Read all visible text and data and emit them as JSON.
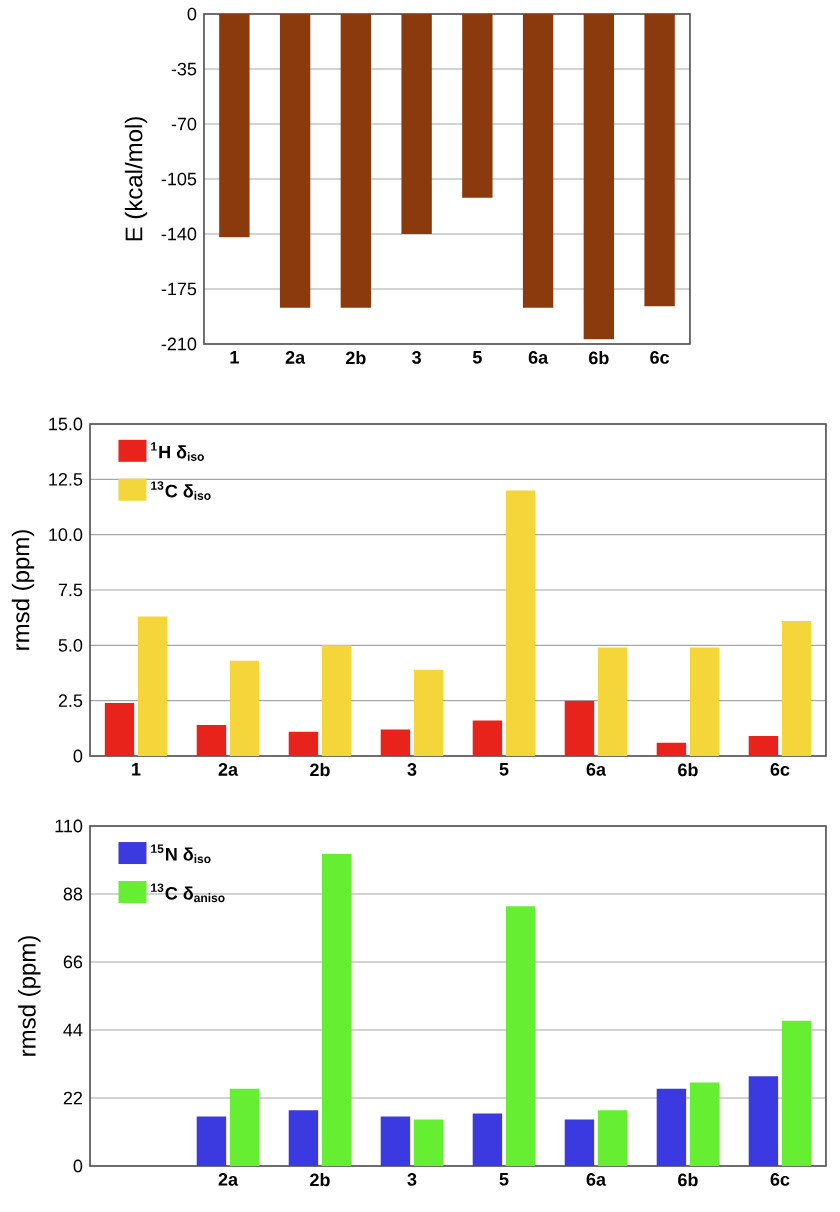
{
  "chart_data": [
    {
      "type": "bar",
      "ylabel": "E (kcal/mol)",
      "categories": [
        "1",
        "2a",
        "2b",
        "3",
        "5",
        "6a",
        "6b",
        "6c"
      ],
      "values": [
        -142,
        -187,
        -187,
        -140,
        -117,
        -187,
        -207,
        -186
      ],
      "color": "#8b3a0e",
      "ylim": [
        -210,
        0
      ],
      "yticks": [
        0,
        -35,
        -70,
        -105,
        -140,
        -175,
        -210
      ],
      "grid": "y"
    },
    {
      "type": "bar",
      "ylabel": "rmsd (ppm)",
      "categories": [
        "1",
        "2a",
        "2b",
        "3",
        "5",
        "6a",
        "6b",
        "6c"
      ],
      "series": [
        {
          "name": "$^{1}$H δ$_{iso}$",
          "color": "#e8231b",
          "values": [
            2.4,
            1.4,
            1.1,
            1.2,
            1.6,
            2.5,
            0.6,
            0.9
          ]
        },
        {
          "name": "$^{13}$C δ$_{iso}$",
          "color": "#f5d63a",
          "values": [
            6.3,
            4.3,
            5.0,
            3.9,
            12.0,
            4.9,
            4.9,
            6.1
          ]
        }
      ],
      "ylim": [
        0,
        15
      ],
      "yticks": [
        0,
        2.5,
        {
          "value": 5,
          "label": "5.0"
        },
        7.5,
        {
          "value": 10,
          "label": "10.0"
        },
        12.5,
        {
          "value": 15,
          "label": "15.0"
        }
      ],
      "grid": "y",
      "legend": "top left"
    },
    {
      "type": "bar",
      "ylabel": "rmsd (ppm)",
      "categories": [
        null,
        "2a",
        "2b",
        "3",
        "5",
        "6a",
        "6b",
        "6c"
      ],
      "series": [
        {
          "name": "$^{15}$N δ$_{iso}$",
          "color": "#3a3ae0",
          "values": [
            null,
            16,
            18,
            16,
            17,
            15,
            25,
            29
          ]
        },
        {
          "name": "$^{13}$C δ$_{aniso}$",
          "color": "#66ee33",
          "values": [
            null,
            25,
            101,
            15,
            84,
            18,
            27,
            47
          ]
        }
      ],
      "ylim": [
        0,
        110
      ],
      "yticks": [
        0,
        22,
        44,
        66,
        88,
        110
      ],
      "grid": "y",
      "legend": "top left"
    }
  ]
}
